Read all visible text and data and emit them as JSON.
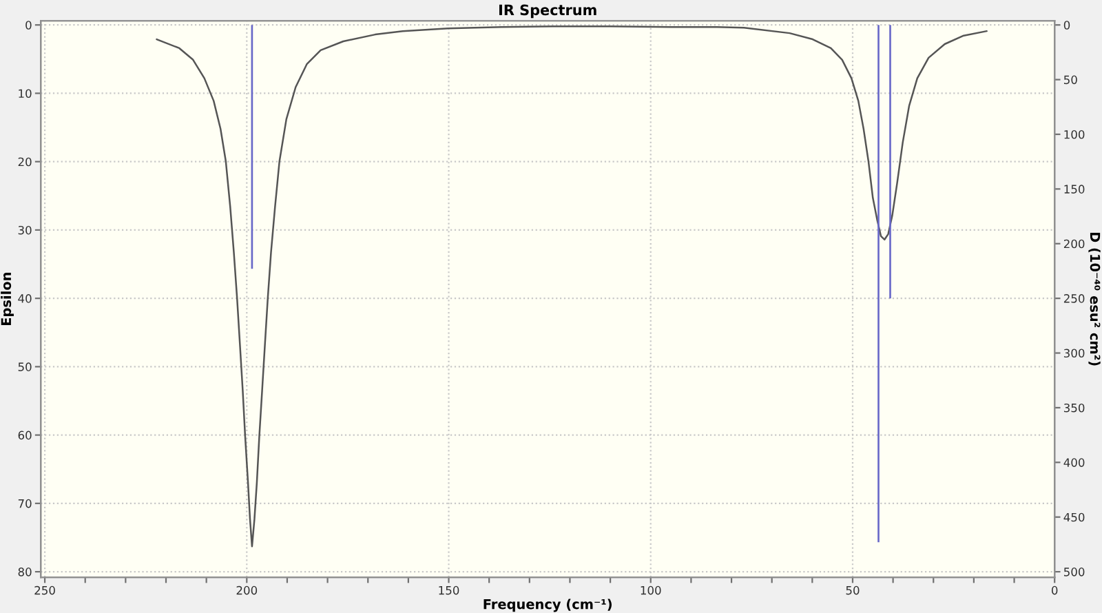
{
  "chart_data": {
    "type": "line",
    "title": "IR Spectrum",
    "xlabel": "Frequency (cm⁻¹)",
    "ylabel": "Epsilon",
    "y2label": "D (10⁻⁴⁰ esu² cm²)",
    "xlim": [
      251,
      0
    ],
    "xticks": [
      250,
      {
        "value": 240,
        "label": null
      },
      {
        "value": 230,
        "label": null
      },
      {
        "value": 220,
        "label": null
      },
      {
        "value": 210,
        "label": null
      },
      200,
      {
        "value": 190,
        "label": null
      },
      {
        "value": 180,
        "label": null
      },
      {
        "value": 170,
        "label": null
      },
      {
        "value": 160,
        "label": null
      },
      150,
      {
        "value": 140,
        "label": null
      },
      {
        "value": 130,
        "label": null
      },
      {
        "value": 120,
        "label": null
      },
      {
        "value": 110,
        "label": null
      },
      100,
      {
        "value": 90,
        "label": null
      },
      {
        "value": 80,
        "label": null
      },
      {
        "value": 70,
        "label": null
      },
      {
        "value": 60,
        "label": null
      },
      50,
      {
        "value": 40,
        "label": null
      },
      {
        "value": 30,
        "label": null
      },
      {
        "value": 20,
        "label": null
      },
      {
        "value": 10,
        "label": null
      },
      0
    ],
    "ylim": [
      80.8,
      -0.6
    ],
    "yticks": [
      0,
      10,
      20,
      30,
      40,
      50,
      60,
      70,
      80
    ],
    "y2lim": [
      505,
      -3.75
    ],
    "y2ticks": [
      0,
      50,
      100,
      150,
      200,
      250,
      300,
      350,
      400,
      450,
      500
    ],
    "grid": true,
    "series": [
      {
        "color": "#555555",
        "x": [
          222.3,
          216.7,
          213.3,
          210.5,
          208.2,
          206.5,
          205.2,
          204.1,
          203.2,
          202.4,
          201.7,
          201.0,
          200.4,
          199.7,
          199.2,
          198.7,
          198.1,
          197.5,
          196.9,
          196.2,
          195.5,
          194.8,
          194.0,
          193.0,
          191.9,
          190.2,
          187.9,
          185.1,
          181.7,
          176.1,
          168.2,
          161.4,
          150.2,
          137.0,
          124.2,
          110.0,
          95.0,
          83.6,
          76.9,
          65.6,
          59.9,
          55.4,
          52.6,
          50.3,
          48.6,
          47.3,
          46.1,
          45.0,
          43.9,
          43.0,
          42.1,
          41.2,
          40.2,
          39.0,
          37.6,
          36.0,
          34.0,
          31.2,
          27.2,
          22.7,
          16.8
        ],
        "values": [
          2.1,
          3.4,
          5.1,
          7.8,
          11.1,
          15.2,
          19.9,
          26.6,
          33.3,
          40.0,
          46.7,
          53.5,
          60.2,
          66.9,
          72.3,
          76.3,
          72.3,
          66.9,
          60.2,
          53.5,
          46.7,
          40.0,
          33.3,
          26.6,
          19.9,
          13.8,
          9.1,
          5.7,
          3.7,
          2.4,
          1.4,
          0.9,
          0.5,
          0.3,
          0.2,
          0.2,
          0.3,
          0.3,
          0.4,
          1.2,
          2.1,
          3.4,
          5.1,
          7.8,
          11.1,
          15.2,
          19.9,
          25.3,
          28.6,
          30.9,
          31.4,
          30.6,
          27.9,
          23.2,
          17.2,
          11.8,
          7.8,
          4.8,
          2.8,
          1.6,
          0.9
        ]
      },
      {
        "type": "bar",
        "axis": "y2",
        "color": "#6868c8",
        "x": [
          198.7,
          43.6,
          40.7
        ],
        "values": [
          223,
          473,
          250
        ]
      }
    ]
  }
}
